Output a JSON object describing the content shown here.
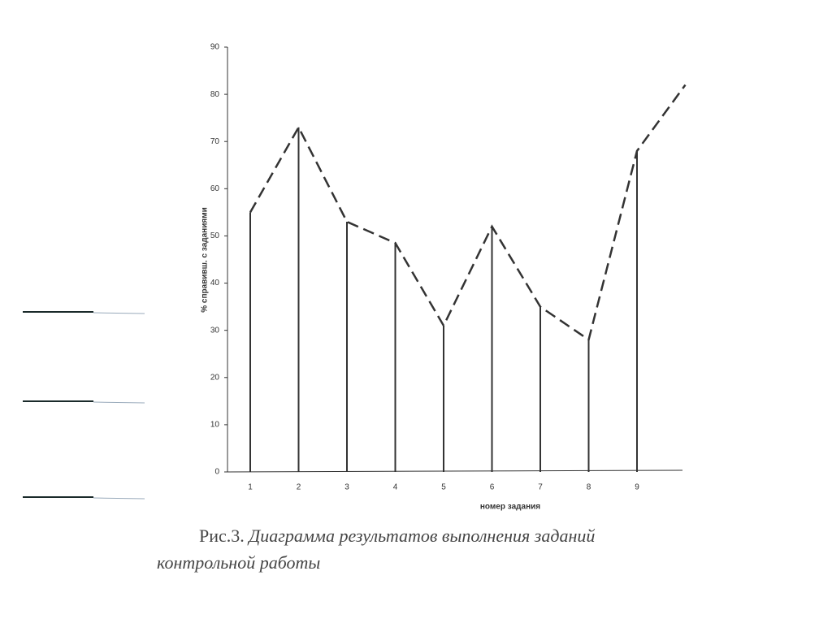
{
  "chart_data": {
    "type": "line",
    "x_label": "номер задания",
    "y_label": "% справивш. с заданиями",
    "categories": [
      "1",
      "2",
      "3",
      "4",
      "5",
      "6",
      "7",
      "8",
      "9",
      null
    ],
    "values": [
      55,
      73,
      53,
      48.5,
      31,
      52,
      35,
      28,
      68,
      82
    ],
    "color": "#333333",
    "ylim": [
      0,
      90
    ],
    "yticks": [
      0,
      10,
      20,
      30,
      40,
      50,
      60,
      70,
      80,
      90
    ]
  },
  "caption": {
    "label": "Рис.3.",
    "text": "Диаграмма результатов выполнения заданий  контрольной работы"
  }
}
